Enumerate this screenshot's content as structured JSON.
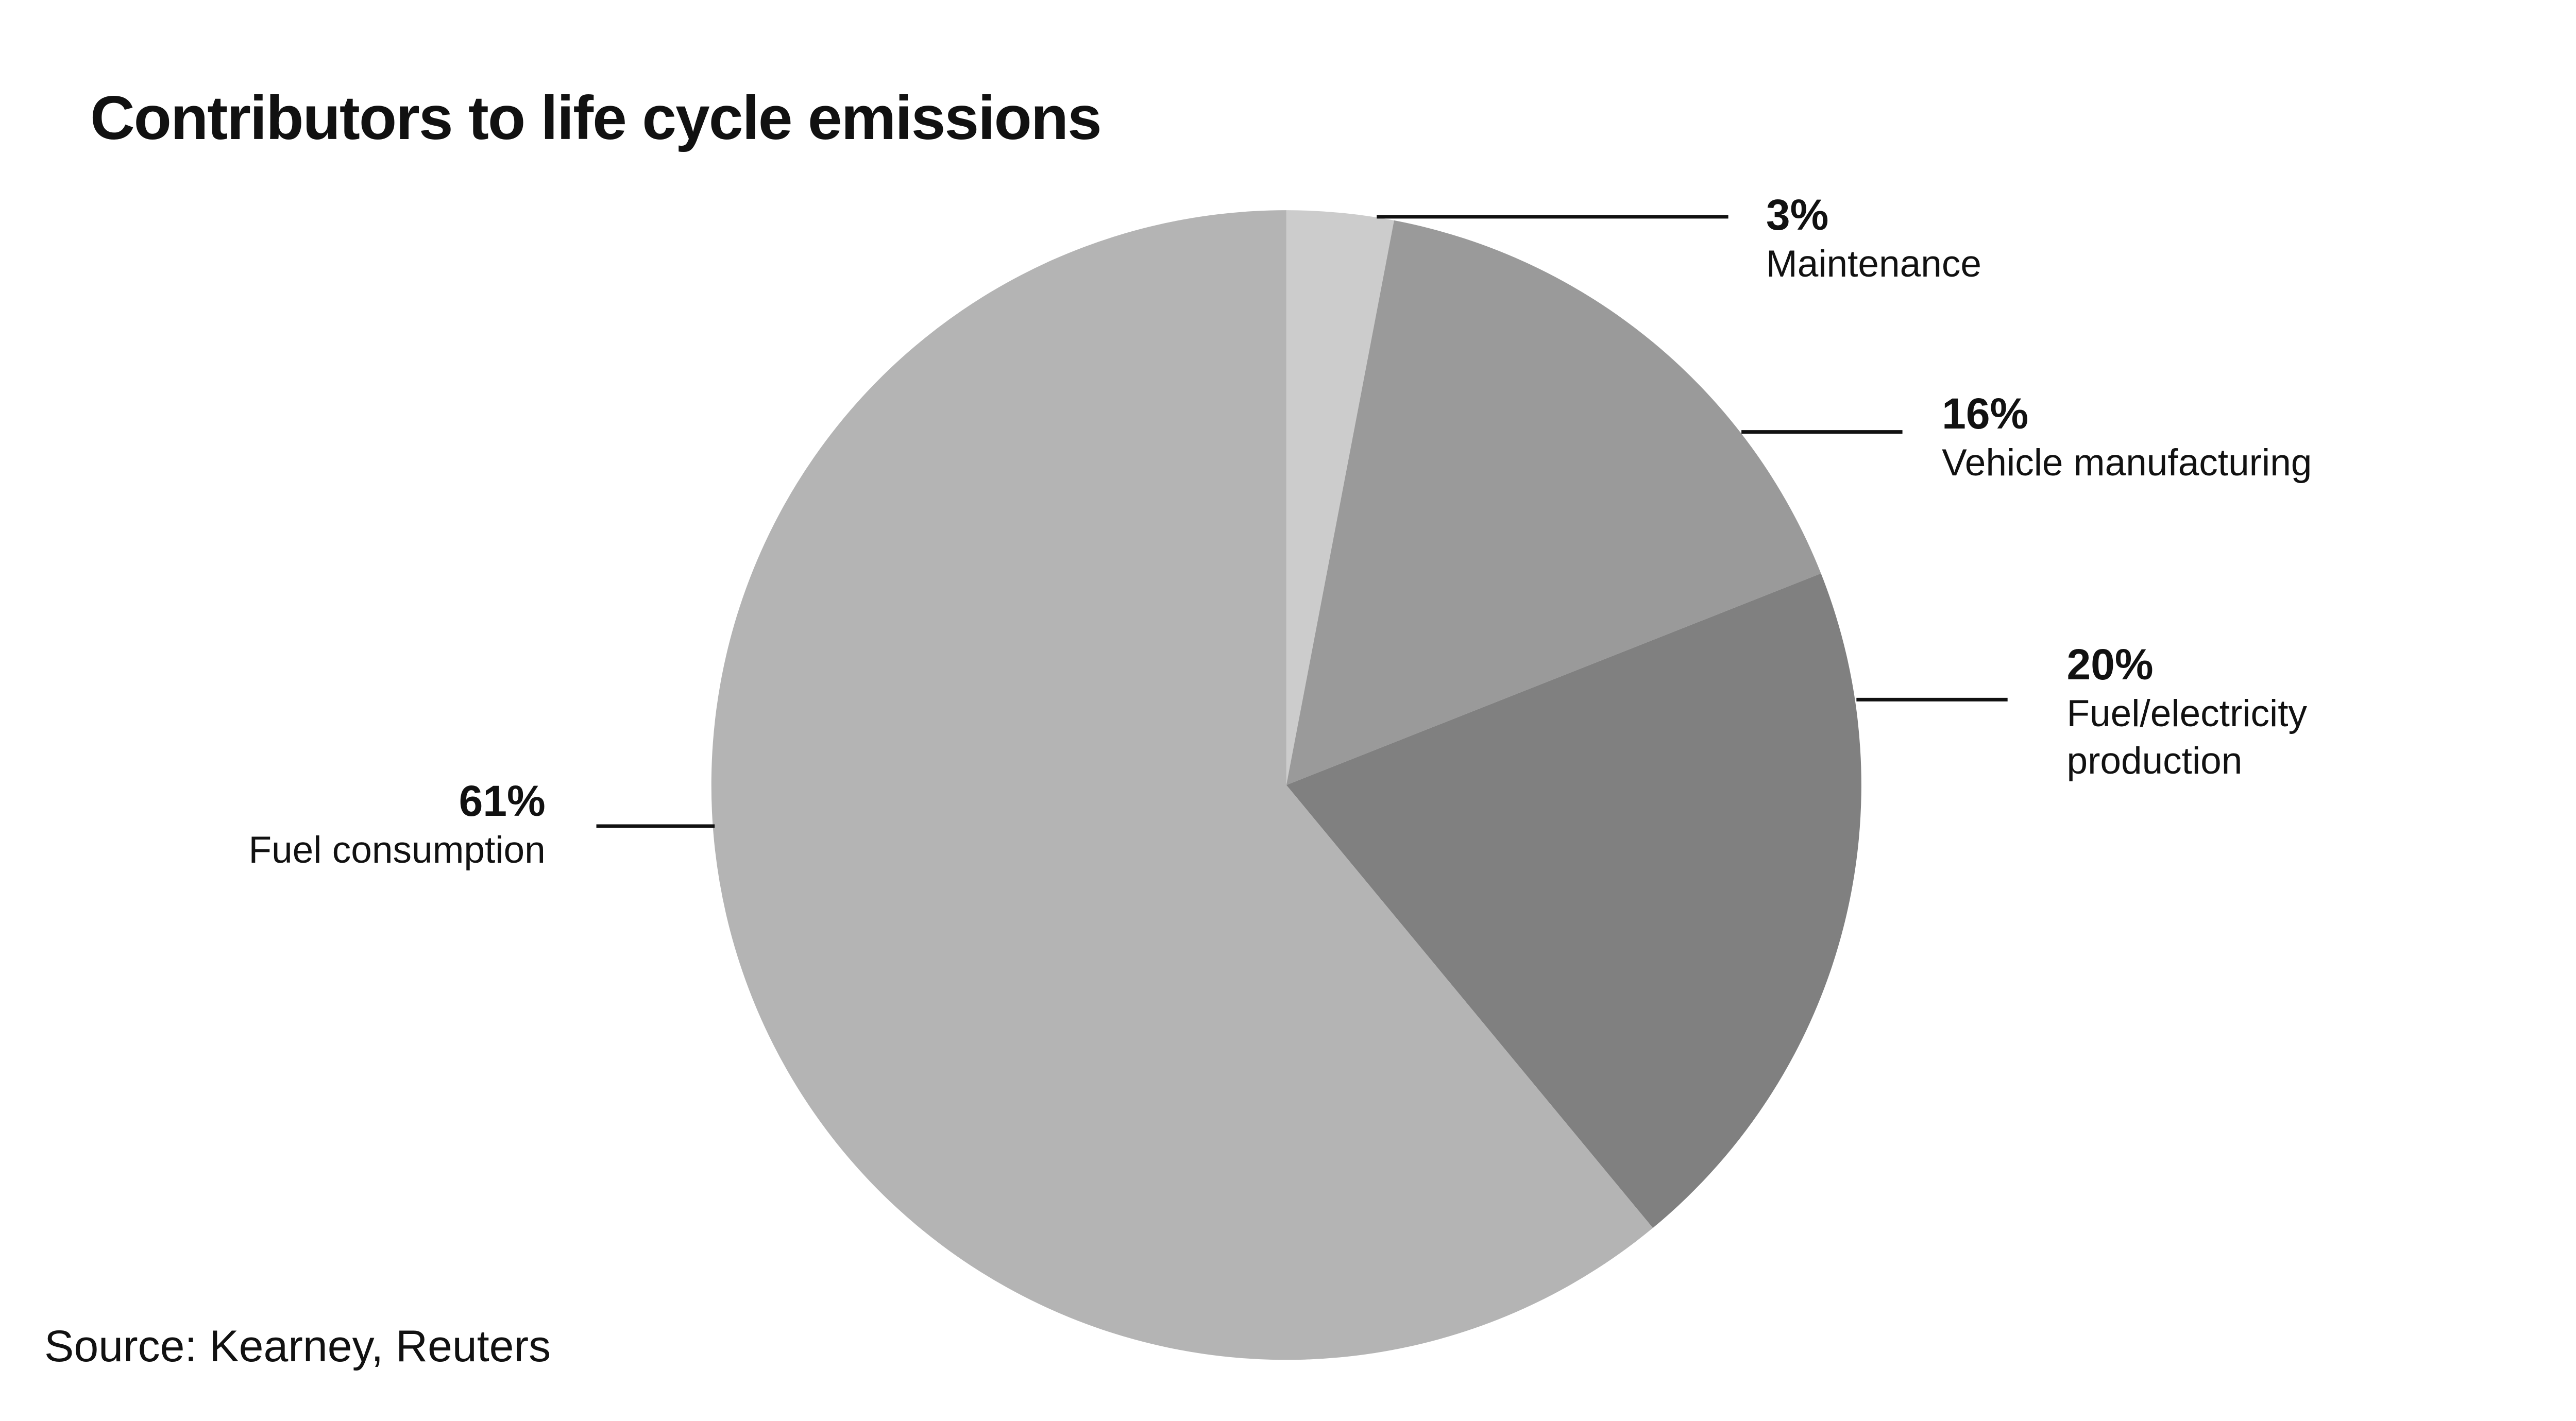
{
  "chart_data": {
    "type": "pie",
    "title": "Contributors to life cycle emissions",
    "categories": [
      "Maintenance",
      "Vehicle manufacturing",
      "Fuel/electricity production",
      "Fuel consumption"
    ],
    "values": [
      3,
      16,
      20,
      61
    ],
    "value_labels": [
      "3%",
      "16%",
      "20%",
      "61%"
    ],
    "colors": [
      "#cccccc",
      "#9a9a9a",
      "#808080",
      "#b4b4b4"
    ],
    "source": "Source: Kearney, Reuters"
  }
}
